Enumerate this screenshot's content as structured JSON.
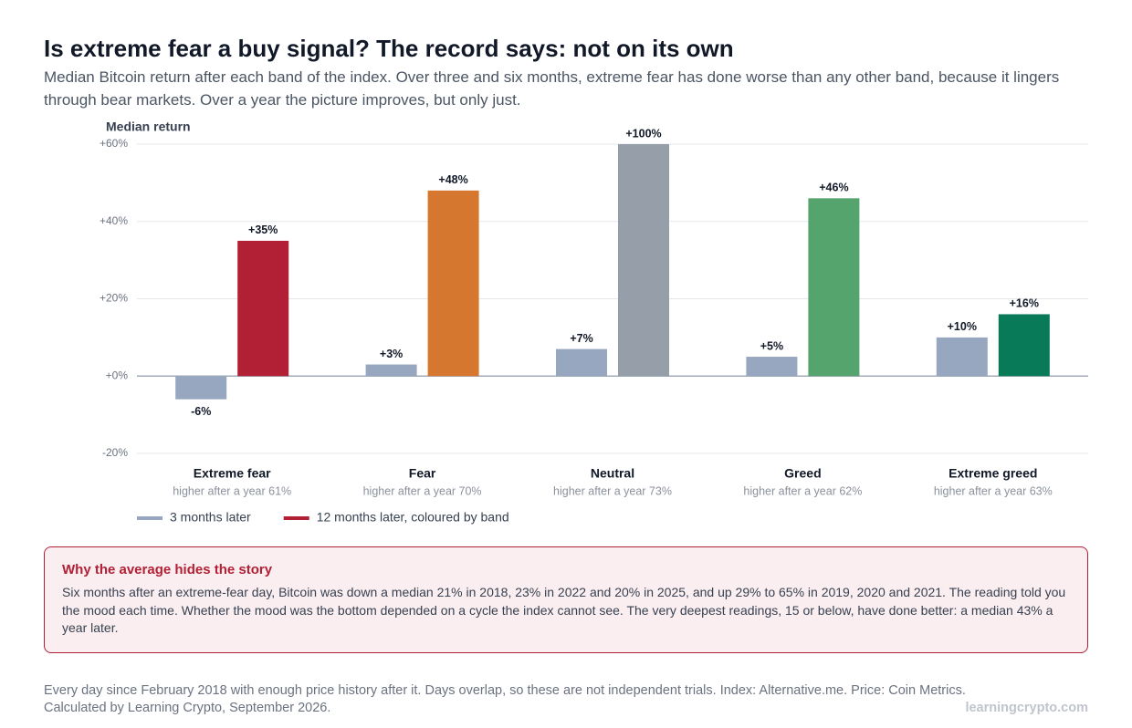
{
  "chart_data": {
    "type": "bar",
    "title": "Is extreme fear a buy signal? The record says: not on its own",
    "subtitle": "Median Bitcoin return after each band of the index. Over three and six months, extreme fear has done worse than any other band, because it lingers through bear markets. Over a year the picture improves, but only just.",
    "y_label": "Median return",
    "categories": [
      "Extreme fear",
      "Fear",
      "Neutral",
      "Greed",
      "Extreme greed"
    ],
    "category_notes": [
      "higher after a year 61%",
      "higher after a year 70%",
      "higher after a year 73%",
      "higher after a year 62%",
      "higher after a year 63%"
    ],
    "series": [
      {
        "name": "3 months later",
        "color": "#97a7c0",
        "values": [
          -6,
          3,
          7,
          5,
          10
        ],
        "value_labels": [
          "-6%",
          "+3%",
          "+7%",
          "+5%",
          "+10%"
        ]
      },
      {
        "name": "12 months later, coloured by band",
        "color": "#b22035",
        "colors": [
          "#b22035",
          "#d67730",
          "#959ea9",
          "#55a46e",
          "#087a57"
        ],
        "values": [
          35,
          48,
          100,
          46,
          16
        ],
        "value_labels": [
          "+35%",
          "+48%",
          "+100%",
          "+46%",
          "+16%"
        ]
      }
    ],
    "ylim": [
      -20,
      60
    ],
    "yticks": [
      {
        "value": -20,
        "label": "-20%"
      },
      {
        "value": 0,
        "label": "+0%"
      },
      {
        "value": 20,
        "label": "+20%"
      },
      {
        "value": 40,
        "label": "+40%"
      },
      {
        "value": 60,
        "label": "+60%"
      }
    ],
    "grid": true
  },
  "callout": {
    "title": "Why the average hides the story",
    "text": "Six months after an extreme-fear day, Bitcoin was down a median 21% in 2018, 23% in 2022 and 20% in 2025, and up 29% to 65% in 2019, 2020 and 2021. The reading told you the mood each time. Whether the mood was the bottom depended on a cycle the index cannot see. The very deepest readings, 15 or below, have done better: a median 43% a year later."
  },
  "footer": {
    "source": "Every day since February 2018 with enough price history after it. Days overlap, so these are not independent trials. Index: Alternative.me. Price: Coin Metrics.",
    "credit": "Calculated by Learning Crypto, September 2026.",
    "site": "learningcrypto.com"
  }
}
